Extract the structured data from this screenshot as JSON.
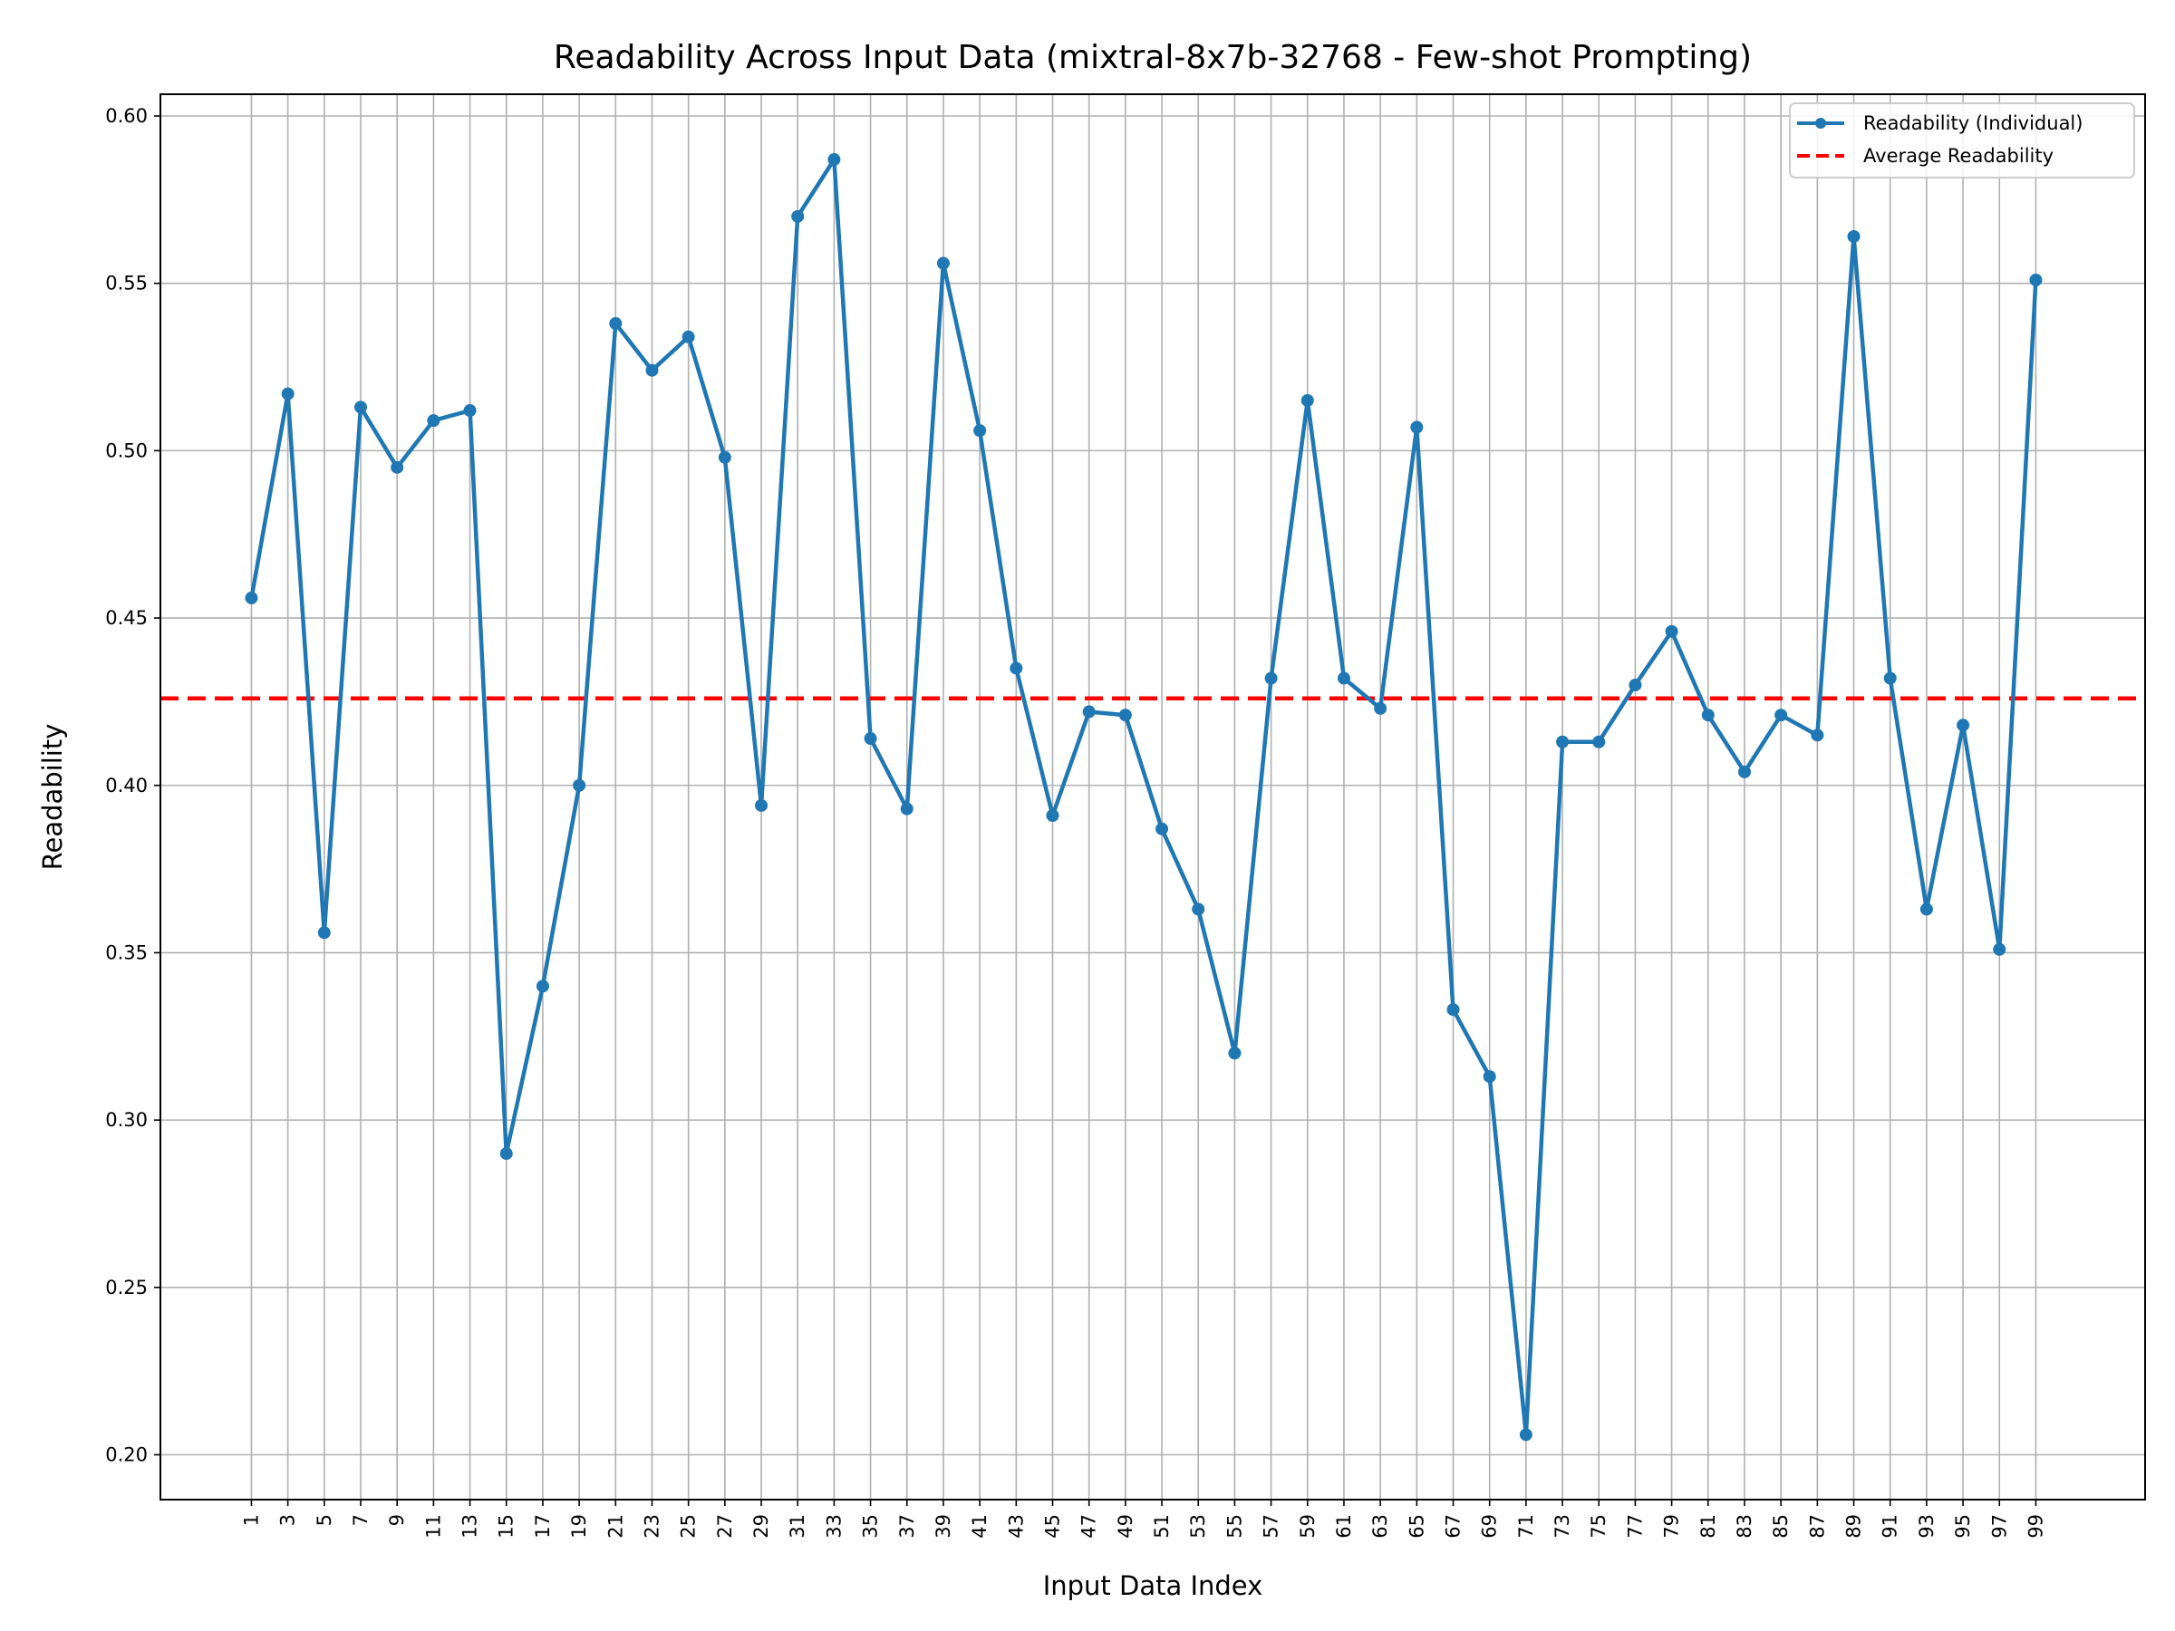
{
  "chart_data": {
    "type": "line",
    "title": "Readability Across Input Data (mixtral-8x7b-32768 - Few-shot Prompting)",
    "xlabel": "Input Data Index",
    "ylabel": "Readability",
    "x": [
      1,
      3,
      5,
      7,
      9,
      11,
      13,
      15,
      17,
      19,
      21,
      23,
      25,
      27,
      29,
      31,
      33,
      35,
      37,
      39,
      41,
      43,
      45,
      47,
      49,
      51,
      53,
      55,
      57,
      59,
      61,
      63,
      65,
      67,
      69,
      71,
      73,
      75,
      77,
      79,
      81,
      83,
      85,
      87,
      89,
      91,
      93,
      95,
      97,
      99
    ],
    "x_tick_labels": [
      "1",
      "3",
      "5",
      "7",
      "9",
      "11",
      "13",
      "15",
      "17",
      "19",
      "21",
      "23",
      "25",
      "27",
      "29",
      "31",
      "33",
      "35",
      "37",
      "39",
      "41",
      "43",
      "45",
      "47",
      "49",
      "51",
      "53",
      "55",
      "57",
      "59",
      "61",
      "63",
      "65",
      "67",
      "69",
      "71",
      "73",
      "75",
      "77",
      "79",
      "81",
      "83",
      "85",
      "87",
      "89",
      "91",
      "93",
      "95",
      "97",
      "99"
    ],
    "y_ticks": [
      0.2,
      0.25,
      0.3,
      0.35,
      0.4,
      0.45,
      0.5,
      0.55,
      0.6
    ],
    "y_tick_labels": [
      "0.20",
      "0.25",
      "0.30",
      "0.35",
      "0.40",
      "0.45",
      "0.50",
      "0.55",
      "0.60"
    ],
    "xlim": [
      -4,
      105
    ],
    "ylim": [
      0.1866,
      0.6065
    ],
    "grid": true,
    "legend_position": "top-right",
    "series": [
      {
        "name": "Readability (Individual)",
        "style": "line-with-markers",
        "color": "#1f77b4",
        "values": [
          0.456,
          0.517,
          0.356,
          0.513,
          0.495,
          0.509,
          0.512,
          0.29,
          0.34,
          0.4,
          0.538,
          0.524,
          0.534,
          0.498,
          0.394,
          0.57,
          0.587,
          0.414,
          0.393,
          0.556,
          0.506,
          0.435,
          0.391,
          0.422,
          0.421,
          0.387,
          0.363,
          0.32,
          0.432,
          0.515,
          0.432,
          0.423,
          0.507,
          0.333,
          0.313,
          0.206,
          0.413,
          0.413,
          0.43,
          0.446,
          0.421,
          0.404,
          0.421,
          0.415,
          0.564,
          0.432,
          0.363,
          0.418,
          0.351,
          0.551
        ]
      },
      {
        "name": "Average Readability",
        "style": "dashed-horizontal-line",
        "color": "#ff0000",
        "value": 0.426
      }
    ]
  }
}
